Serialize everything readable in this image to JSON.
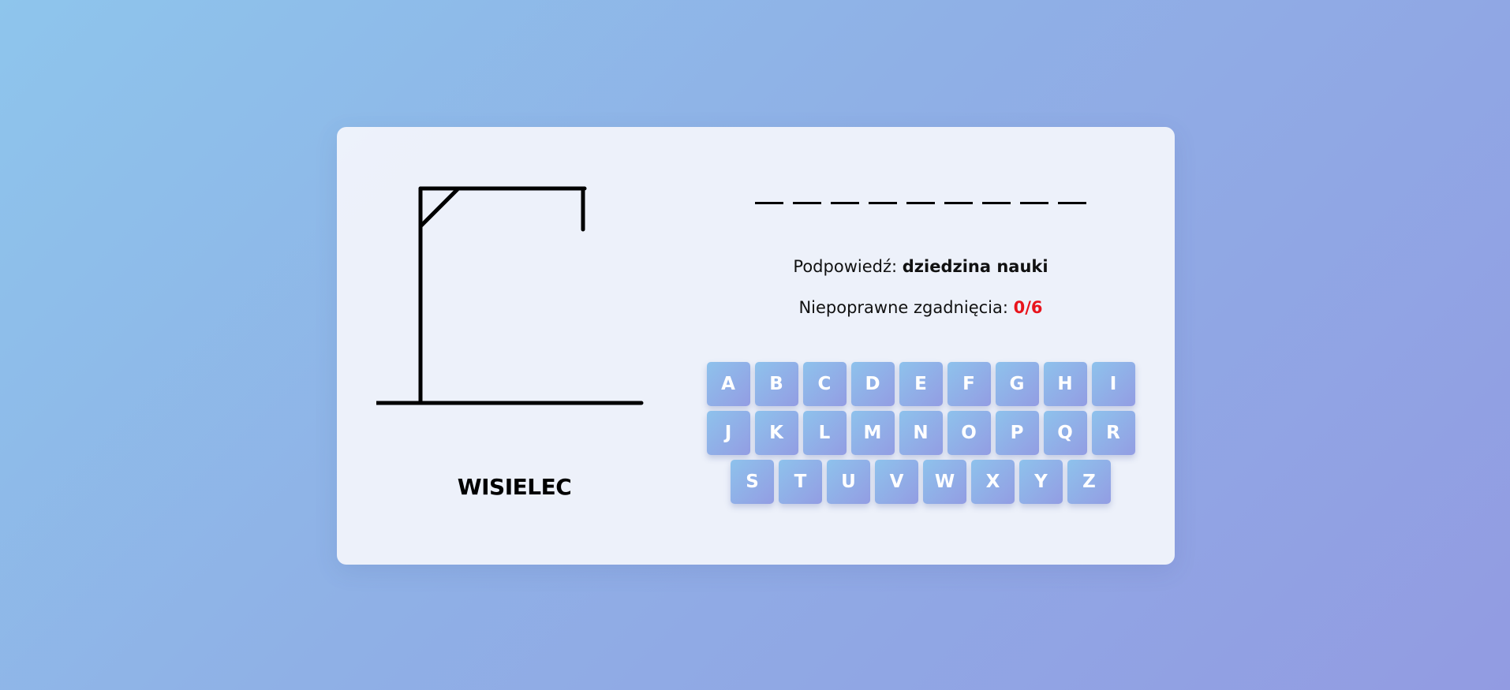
{
  "game": {
    "title": "WISIELEC",
    "word_length": 9,
    "hint_label": "Podpowiedź:",
    "hint_value": "dziedzina nauki",
    "guesses_label": "Niepoprawne zgadnięcia:",
    "guesses_count": "0/6",
    "incorrect_guesses": 0,
    "max_guesses": 6
  },
  "keyboard": {
    "rows": [
      [
        "A",
        "B",
        "C",
        "D",
        "E",
        "F",
        "G",
        "H",
        "I"
      ],
      [
        "J",
        "K",
        "L",
        "M",
        "N",
        "O",
        "P",
        "Q",
        "R"
      ],
      [
        "S",
        "T",
        "U",
        "V",
        "W",
        "X",
        "Y",
        "Z"
      ]
    ]
  },
  "colors": {
    "accent_red": "#e8141c",
    "key_gradient_start": "#8ec2ec",
    "key_gradient_end": "#939de3"
  }
}
